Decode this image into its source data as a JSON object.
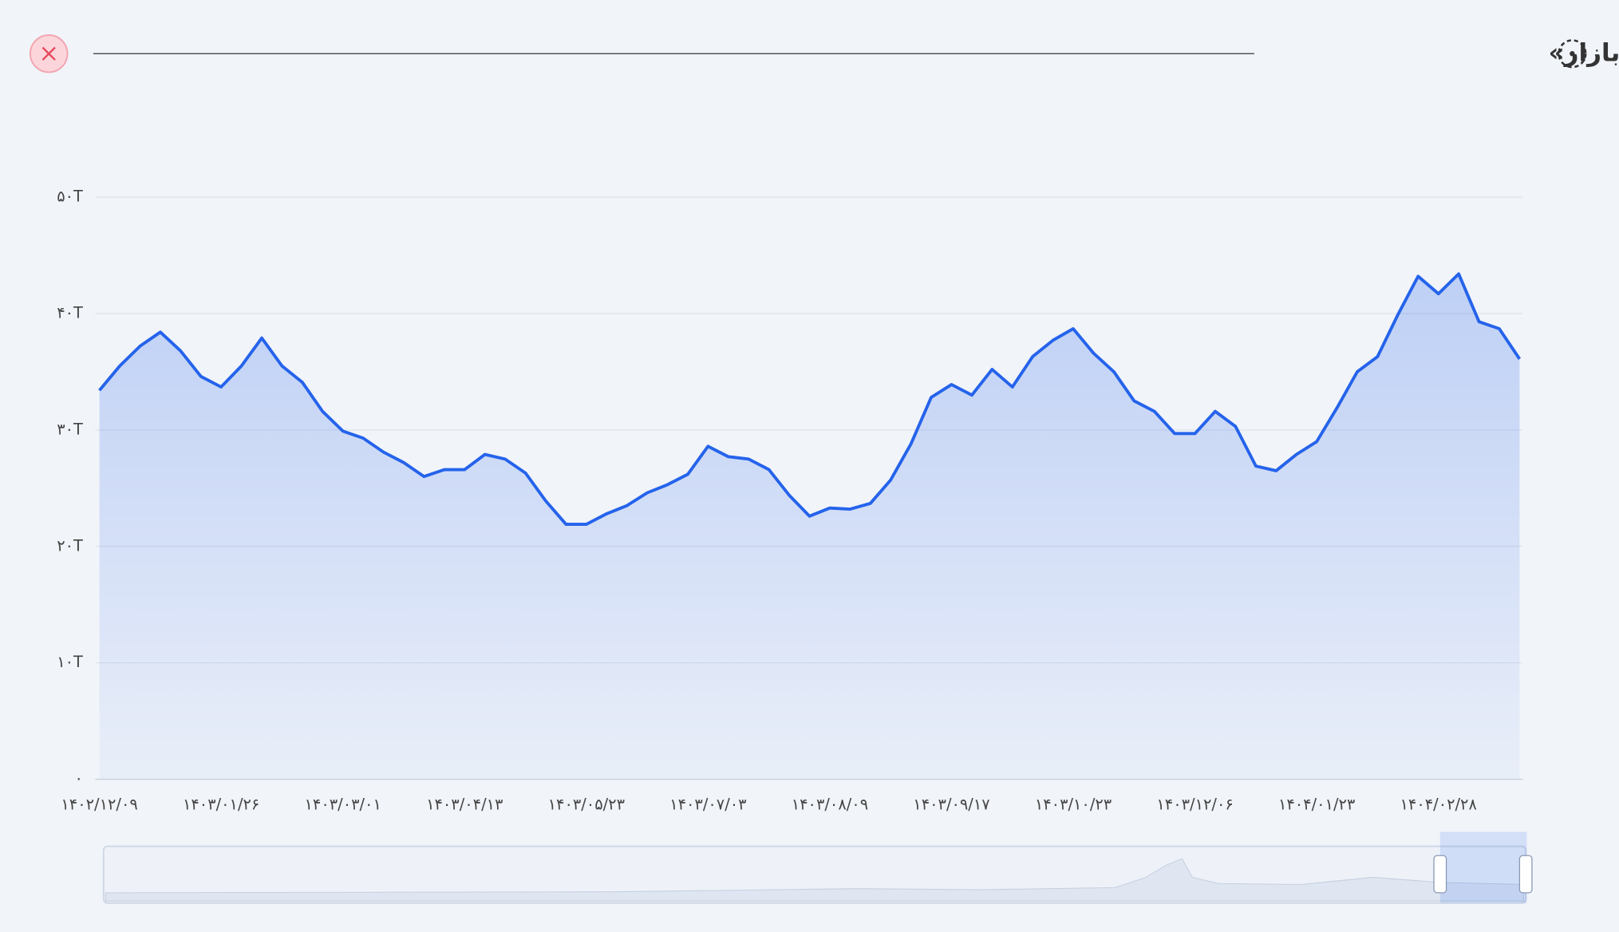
{
  "header": {
    "title": "تاریخچه «ارزش بازار»"
  },
  "chart_data": {
    "type": "area",
    "categories": [
      "۱۴۰۲/۱۲/۰۹",
      null,
      null,
      null,
      null,
      null,
      "۱۴۰۳/۰۱/۲۶",
      null,
      null,
      null,
      null,
      null,
      "۱۴۰۳/۰۳/۰۱",
      null,
      null,
      null,
      null,
      null,
      "۱۴۰۳/۰۴/۱۳",
      null,
      null,
      null,
      null,
      null,
      "۱۴۰۳/۰۵/۲۳",
      null,
      null,
      null,
      null,
      null,
      "۱۴۰۳/۰۷/۰۳",
      null,
      null,
      null,
      null,
      null,
      "۱۴۰۳/۰۸/۰۹",
      null,
      null,
      null,
      null,
      null,
      "۱۴۰۳/۰۹/۱۷",
      null,
      null,
      null,
      null,
      null,
      "۱۴۰۳/۱۰/۲۳",
      null,
      null,
      null,
      null,
      null,
      "۱۴۰۳/۱۲/۰۶",
      null,
      null,
      null,
      null,
      null,
      "۱۴۰۴/۰۱/۲۳",
      null,
      null,
      null,
      null,
      null,
      "۱۴۰۴/۰۲/۲۸",
      null,
      null,
      null,
      null
    ],
    "values": [
      33.4,
      35.5,
      37.2,
      38.4,
      36.8,
      34.6,
      33.7,
      35.5,
      37.9,
      35.5,
      34.1,
      31.6,
      29.9,
      29.3,
      28.1,
      27.2,
      26.0,
      26.6,
      26.6,
      27.9,
      27.5,
      26.3,
      23.9,
      21.9,
      21.9,
      22.8,
      23.5,
      24.6,
      25.3,
      26.2,
      28.6,
      27.7,
      27.5,
      26.6,
      24.4,
      22.6,
      23.3,
      23.2,
      23.7,
      25.7,
      28.8,
      32.8,
      33.9,
      33.0,
      35.2,
      33.7,
      36.3,
      37.7,
      38.7,
      36.6,
      35.0,
      32.5,
      31.6,
      29.7,
      29.7,
      31.6,
      30.3,
      26.9,
      26.5,
      27.9,
      29.0,
      31.9,
      35.0,
      36.3,
      39.9,
      43.2,
      41.7,
      43.4,
      39.3,
      38.7,
      36.1
    ],
    "color": "#2563eb",
    "ylim": [
      0,
      50
    ],
    "yticks": [
      {
        "value": 0,
        "label": "۰"
      },
      {
        "value": 10,
        "label": "۱۰T"
      },
      {
        "value": 20,
        "label": "۲۰T"
      },
      {
        "value": 30,
        "label": "۳۰T"
      },
      {
        "value": 40,
        "label": "۴۰T"
      },
      {
        "value": 50,
        "label": "۵۰T"
      }
    ],
    "grid": true
  }
}
